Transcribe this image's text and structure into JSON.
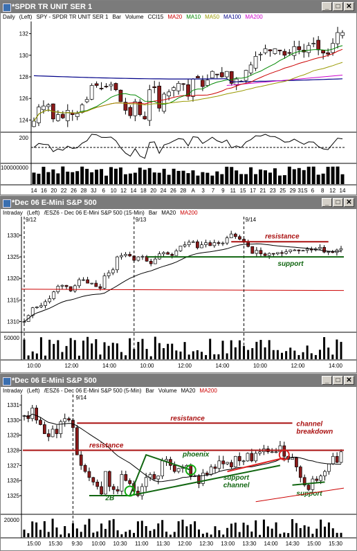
{
  "colors": {
    "ma20": "#cc0000",
    "ma10": "#008800",
    "ma50": "#999900",
    "ma100": "#000088",
    "ma200": "#cc00cc",
    "annot_red": "#aa1111",
    "annot_green": "#116611"
  },
  "windows": [
    {
      "title": "*SPDR TR UNIT SER 1",
      "info": {
        "interval": "Daily",
        "axis": "(Left)",
        "symbol": "SPY - SPDR TR UNIT SER 1",
        "bar": "Bar",
        "vol": "Volume",
        "ind": "CCI15",
        "ma20": "MA20",
        "ma10": "MA10",
        "ma50": "MA50",
        "ma100": "MA100",
        "ma200": "MA200"
      },
      "buttons": {
        "min": "_",
        "max": "□",
        "close": "✕"
      }
    },
    {
      "title": "*Dec 06  E-Mini S&P 500",
      "info": {
        "interval": "Intraday",
        "axis": "(Left)",
        "symbol": "/ESZ6 - Dec 06  E-Mini S&P 500  (15-Min)",
        "bar": "Bar",
        "ma20": "MA20",
        "ma200": "MA200"
      },
      "buttons": {
        "min": "_",
        "max": "□",
        "close": "✕"
      }
    },
    {
      "title": "*Dec 06  E-Mini S&P 500",
      "info": {
        "interval": "Intraday",
        "axis": "(Left)",
        "symbol": "/ESZ6 - Dec 06  E-Mini S&P 500  (5-Min)",
        "bar": "Bar",
        "vol": "Volume",
        "ma20": "MA20",
        "ma200": "MA200"
      },
      "buttons": {
        "min": "_",
        "max": "□",
        "close": "✕"
      }
    }
  ],
  "chart_data": [
    {
      "type": "candlestick",
      "price_axis": {
        "ylim": [
          123,
          133
        ],
        "ticks": [
          "132",
          "130",
          "128",
          "126",
          "124"
        ]
      },
      "cci_axis": {
        "ticks": [
          "200"
        ]
      },
      "volume_axis": {
        "ticks": [
          "100000000"
        ]
      },
      "x_ticks": [
        "14",
        "16",
        "20",
        "22",
        "26",
        "28",
        "3J",
        "6",
        "10",
        "12",
        "14",
        "18",
        "20",
        "24",
        "26",
        "28",
        "A",
        "3",
        "7",
        "9",
        "11",
        "15",
        "17",
        "21",
        "23",
        "25",
        "29",
        "31S",
        "6",
        "8",
        "12",
        "14"
      ],
      "closes": [
        123.9,
        125.2,
        125.3,
        125.4,
        124.1,
        124.5,
        124.2,
        124.9,
        124.5,
        124.6,
        125.4,
        125.9,
        127.2,
        127.2,
        126.9,
        127.1,
        127.3,
        126.8,
        125.7,
        124.9,
        124.4,
        125.7,
        124.5,
        124.1,
        126.8,
        127.0,
        125.1,
        126.4,
        126.6,
        127.0,
        127.4,
        127.3,
        126.2,
        127.8,
        127.9,
        127.1,
        127.7,
        128.5,
        128.2,
        128.0,
        128.5,
        127.4,
        127.8,
        127.6,
        128.6,
        129.1,
        129.9,
        130.1,
        130.6,
        130.4,
        130.6,
        130.4,
        130.0,
        130.2,
        130.8,
        130.5,
        130.3,
        130.9,
        131.1,
        130.5,
        130.2,
        130.1,
        131.1,
        132.1,
        132.1
      ],
      "ma_series": [
        "MA20",
        "MA10",
        "MA50",
        "MA100",
        "MA200"
      ]
    },
    {
      "type": "bar",
      "ylim": [
        1308,
        1334
      ],
      "y_ticks": [
        "1330",
        "1325",
        "1320",
        "1315",
        "1310"
      ],
      "x_ticks": [
        "10:00",
        "12:00",
        "14:00",
        "10:00",
        "12:00",
        "14:00",
        "10:00",
        "12:00",
        "14:00"
      ],
      "session_labels": [
        "9/12",
        "9/13",
        "9/14"
      ],
      "volume_ticks": [
        "50000"
      ],
      "annotations": {
        "resistance": "resistance",
        "support": "support"
      },
      "resistance_level": 1328.5,
      "support_level": 1325,
      "ma200_level": 1317.5,
      "closes": [
        1310.0,
        1311.4,
        1313.2,
        1313.4,
        1313.7,
        1314.6,
        1315.3,
        1316.9,
        1318.2,
        1318.4,
        1318.1,
        1317.1,
        1318.3,
        1319.7,
        1319.7,
        1318.9,
        1318.9,
        1318.1,
        1317.7,
        1320.6,
        1321.3,
        1322.0,
        1325.0,
        1325.3,
        1325.6,
        1325.2,
        1324.2,
        1325.0,
        1325.1,
        1324.0,
        1323.4,
        1324.5,
        1325.7,
        1326.0,
        1325.6,
        1325.3,
        1326.4,
        1327.5,
        1327.8,
        1328.4,
        1328.5,
        1327.1,
        1327.8,
        1328.3,
        1327.6,
        1328.3,
        1328.1,
        1328.2,
        1329.4,
        1330.3,
        1329.7,
        1329.1,
        1328.4,
        1327.4,
        1325.8,
        1326.5,
        1325.7,
        1325.3,
        1325.8,
        1325.7,
        1326.0,
        1325.8,
        1326.2,
        1326.6,
        1326.6,
        1326.4,
        1326.5,
        1326.8,
        1326.6,
        1326.9,
        1327.2,
        1326.1,
        1326.2,
        1326.0,
        1326.6,
        1326.9
      ]
    },
    {
      "type": "bar",
      "ylim": [
        1323.9,
        1331.6
      ],
      "y_ticks": [
        "1331",
        "1330",
        "1329",
        "1328",
        "1327",
        "1326",
        "1325"
      ],
      "x_ticks": [
        "15:00",
        "15:30",
        "9:30",
        "10:00",
        "10:30",
        "11:00",
        "11:30",
        "12:00",
        "12:30",
        "13:00",
        "13:30",
        "14:00",
        "14:30",
        "15:00",
        "15:30"
      ],
      "session_labels": [
        "9/14"
      ],
      "volume_ticks": [
        "20000"
      ],
      "annotations": {
        "resistance_upper": "resistance",
        "resistance_lower": "resistance",
        "phoenix": "phoenix",
        "two_b": "2B",
        "support_channel": "support\nchannel",
        "channel_breakdown": "channel\nbreakdown",
        "support": "support"
      },
      "resistance_level_upper": 1329.8,
      "resistance_level_lower": 1328.0,
      "closes": [
        1330.3,
        1330.1,
        1330.8,
        1330.0,
        1329.7,
        1329.1,
        1328.9,
        1329.4,
        1329.1,
        1329.9,
        1330.1,
        1330.0,
        1329.5,
        1327.7,
        1327.0,
        1326.6,
        1326.2,
        1325.9,
        1325.6,
        1325.1,
        1326.6,
        1325.6,
        1325.4,
        1325.3,
        1326.4,
        1326.0,
        1325.8,
        1325.3,
        1325.0,
        1325.6,
        1326.2,
        1326.4,
        1326.1,
        1326.3,
        1327.3,
        1327.4,
        1327.0,
        1326.6,
        1326.8,
        1326.9,
        1327.0,
        1326.3,
        1326.3,
        1325.8,
        1326.5,
        1326.4,
        1326.9,
        1326.8,
        1327.3,
        1327.1,
        1327.2,
        1326.9,
        1327.6,
        1327.3,
        1327.3,
        1327.8,
        1327.3,
        1327.8,
        1327.9,
        1328.1,
        1327.9,
        1327.9,
        1327.9,
        1328.3,
        1327.6,
        1327.4,
        1327.5,
        1326.9,
        1326.2,
        1325.7,
        1325.4,
        1326.1,
        1326.0,
        1326.3,
        1326.6,
        1327.1,
        1327.6,
        1327.2,
        1327.9
      ]
    }
  ]
}
